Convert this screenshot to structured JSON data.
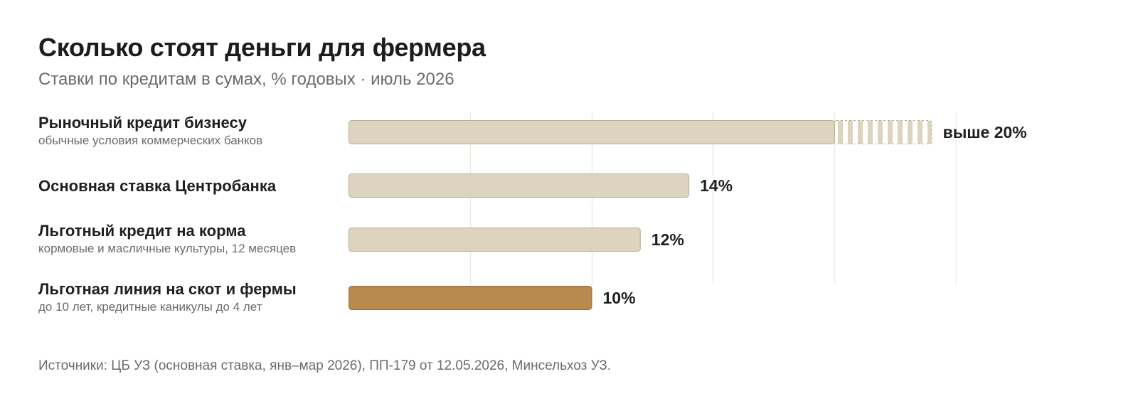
{
  "title": "Сколько стоят деньги для фермера",
  "subtitle": "Ставки по кредитам в сумах, % годовых · июль 2026",
  "source": "Источники: ЦБ УЗ (основная ставка, янв–мар 2026), ПП-179 от 12.05.2026, Минсельхоз УЗ.",
  "colors": {
    "neutral_bar": "#dcd4bf",
    "neutral_border": "#b8ae95",
    "highlight_bar": "#b98a4f",
    "highlight_border": "#9a6f3a",
    "grid": "#ebebe6"
  },
  "chart_data": {
    "type": "bar",
    "orientation": "horizontal",
    "unit": "% годовых",
    "xlim": [
      0,
      25
    ],
    "grid": true,
    "categories": [
      "Рыночный кредит бизнесу",
      "Основная ставка Центробанка",
      "Льготный кредит на корма",
      "Льготная линия на скот и фермы"
    ],
    "subtitles": [
      "обычные условия коммерческих банков",
      "",
      "кормовые и масличные культуры, 12 месяцев",
      "до 10 лет, кредитные каникулы до 4 лет"
    ],
    "values": [
      20,
      14,
      12,
      10
    ],
    "open_ended": [
      true,
      false,
      false,
      false
    ],
    "highlight": [
      false,
      false,
      false,
      true
    ],
    "value_labels": [
      "выше 20%",
      "14%",
      "12%",
      "10%"
    ]
  }
}
